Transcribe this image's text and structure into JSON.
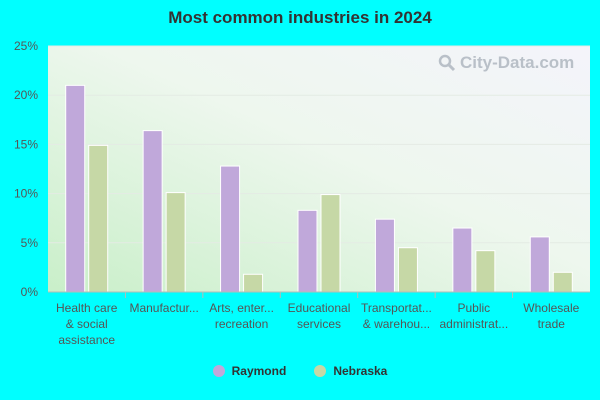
{
  "title": "Most common industries in 2024",
  "watermark": "City-Data.com",
  "colors": {
    "Raymond": "#c0a8da",
    "Nebraska": "#c6d8a6"
  },
  "chart_data": {
    "type": "bar",
    "title": "Most common industries in 2024",
    "categories": [
      [
        "Health care",
        "& social",
        "assistance"
      ],
      [
        "Manufactur..."
      ],
      [
        "Arts, enter...",
        "recreation"
      ],
      [
        "Educational",
        "services"
      ],
      [
        "Transportat...",
        "& warehou..."
      ],
      [
        "Public",
        "administrat..."
      ],
      [
        "Wholesale",
        "trade"
      ]
    ],
    "series": [
      {
        "name": "Raymond",
        "values": [
          21.0,
          16.4,
          12.8,
          8.3,
          7.4,
          6.5,
          5.6
        ]
      },
      {
        "name": "Nebraska",
        "values": [
          14.9,
          10.1,
          1.8,
          9.9,
          4.5,
          4.2,
          2.0
        ]
      }
    ],
    "ylim": [
      0,
      25
    ],
    "yticks": [
      "0%",
      "5%",
      "10%",
      "15%",
      "20%",
      "25%"
    ],
    "grid": true,
    "legend_position": "bottom"
  },
  "legend": [
    {
      "name": "Raymond",
      "label": "Raymond"
    },
    {
      "name": "Nebraska",
      "label": "Nebraska"
    }
  ]
}
